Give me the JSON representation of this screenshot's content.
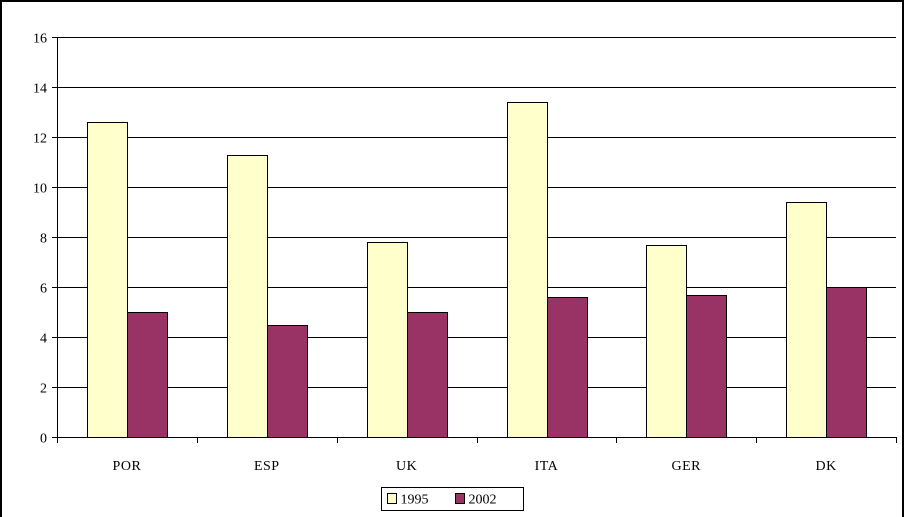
{
  "chart_data": {
    "type": "bar",
    "title": "",
    "xlabel": "",
    "ylabel": "",
    "categories": [
      "POR",
      "ESP",
      "UK",
      "ITA",
      "GER",
      "DK"
    ],
    "series": [
      {
        "name": "1995",
        "values": [
          12.6,
          11.3,
          7.8,
          13.4,
          7.7,
          9.4
        ],
        "color": "#ffffcc"
      },
      {
        "name": "2002",
        "values": [
          5.0,
          4.5,
          5.0,
          5.6,
          5.7,
          6.0
        ],
        "color": "#993366"
      }
    ],
    "ylim": [
      0,
      16
    ],
    "yticks": [
      0,
      2,
      4,
      6,
      8,
      10,
      12,
      14,
      16
    ],
    "grid": true,
    "legend_position": "bottom"
  }
}
